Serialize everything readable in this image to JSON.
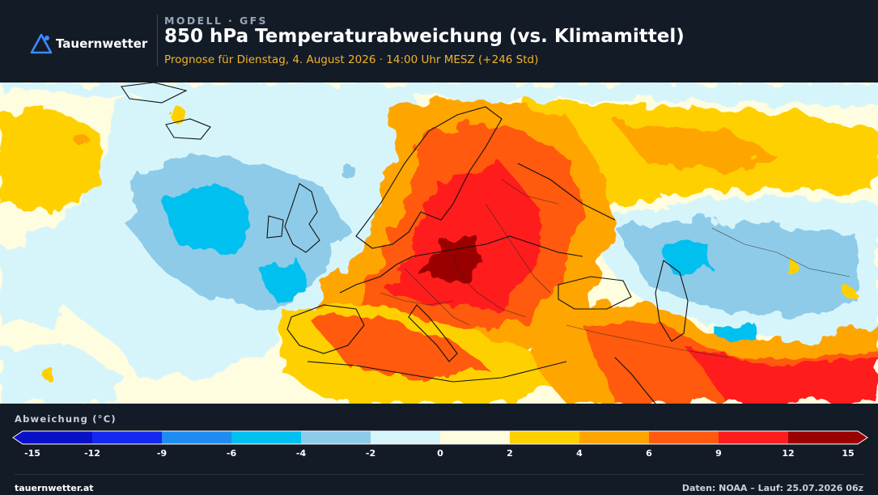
{
  "header": {
    "brand": "Tauernwetter",
    "model_label": "MODELL · GFS",
    "title": "850 hPa Temperaturabweichung (vs. Klimamittel)",
    "forecast_text": "Prognose für Dienstag, 4. August 2026 · 14:00 Uhr MESZ  (+246 Std)"
  },
  "legend": {
    "title": "Abweichung (°C)",
    "ticks": [
      "-15",
      "-12",
      "-9",
      "-6",
      "-4",
      "-2",
      "0",
      "2",
      "4",
      "6",
      "9",
      "12",
      "15"
    ],
    "bins": [
      {
        "from": -15,
        "to": -12,
        "color": "#0a10c8"
      },
      {
        "from": -12,
        "to": -9,
        "color": "#1428f0"
      },
      {
        "from": -9,
        "to": -6,
        "color": "#1e8cf0"
      },
      {
        "from": -6,
        "to": -4,
        "color": "#00c0f0"
      },
      {
        "from": -4,
        "to": -2,
        "color": "#8ecbe8"
      },
      {
        "from": -2,
        "to": 0,
        "color": "#d6f5fb"
      },
      {
        "from": 0,
        "to": 2,
        "color": "#fffde0"
      },
      {
        "from": 2,
        "to": 4,
        "color": "#ffd000"
      },
      {
        "from": 4,
        "to": 6,
        "color": "#ffa500"
      },
      {
        "from": 6,
        "to": 9,
        "color": "#ff5a10"
      },
      {
        "from": 9,
        "to": 12,
        "color": "#ff1c1c"
      },
      {
        "from": 12,
        "to": 15,
        "color": "#9a0000"
      }
    ]
  },
  "footer": {
    "site": "tauernwetter.at",
    "source": "Daten: NOAA – Lauf: 25.07.2026 06z"
  }
}
